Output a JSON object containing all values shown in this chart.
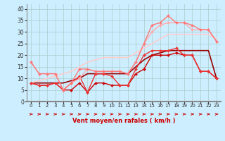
{
  "title": "",
  "xlabel": "Vent moyen/en rafales ( km/h )",
  "background_color": "#cceeff",
  "grid_color": "#aacccc",
  "xlim": [
    -0.5,
    23.5
  ],
  "ylim": [
    0,
    42
  ],
  "yticks": [
    0,
    5,
    10,
    15,
    20,
    25,
    30,
    35,
    40
  ],
  "xticks": [
    0,
    1,
    2,
    3,
    4,
    5,
    6,
    7,
    8,
    9,
    10,
    11,
    12,
    13,
    14,
    15,
    16,
    17,
    18,
    19,
    20,
    21,
    22,
    23
  ],
  "series": [
    {
      "x": [
        0,
        1,
        2,
        3,
        4,
        5,
        6,
        7,
        8,
        9,
        10,
        11,
        12,
        13,
        14,
        15,
        16,
        17,
        18,
        19,
        20,
        21,
        22,
        23
      ],
      "y": [
        8,
        7,
        7,
        8,
        5,
        5,
        8,
        4,
        8,
        8,
        7,
        7,
        7,
        12,
        14,
        20,
        20,
        20,
        21,
        20,
        20,
        13,
        13,
        10
      ],
      "color": "#cc0000",
      "lw": 1.0,
      "marker": "D",
      "ms": 2.0
    },
    {
      "x": [
        0,
        1,
        2,
        3,
        4,
        5,
        6,
        7,
        8,
        9,
        10,
        11,
        12,
        13,
        14,
        15,
        16,
        17,
        18,
        19,
        20,
        21,
        22,
        23
      ],
      "y": [
        8,
        7,
        7,
        8,
        5,
        8,
        11,
        4,
        12,
        12,
        11,
        7,
        7,
        14,
        20,
        22,
        22,
        22,
        23,
        20,
        20,
        13,
        13,
        10
      ],
      "color": "#ee3333",
      "lw": 1.0,
      "marker": "D",
      "ms": 2.0
    },
    {
      "x": [
        0,
        1,
        2,
        3,
        4,
        5,
        6,
        7,
        8,
        9,
        10,
        11,
        12,
        13,
        14,
        15,
        16,
        17,
        18,
        19,
        20,
        21,
        22,
        23
      ],
      "y": [
        8,
        8,
        8,
        8,
        8,
        9,
        10,
        12,
        12,
        12,
        12,
        12,
        12,
        15,
        18,
        20,
        21,
        22,
        22,
        22,
        22,
        22,
        22,
        10
      ],
      "color": "#990000",
      "lw": 1.2,
      "marker": null,
      "ms": 0
    },
    {
      "x": [
        0,
        1,
        2,
        3,
        4,
        5,
        6,
        7,
        8,
        9,
        10,
        11,
        12,
        13,
        14,
        15,
        16,
        17,
        18,
        19,
        20,
        21,
        22,
        23
      ],
      "y": [
        17,
        12,
        12,
        12,
        5,
        8,
        10,
        14,
        13,
        13,
        13,
        13,
        12,
        17,
        25,
        30,
        33,
        34,
        34,
        34,
        31,
        31,
        31,
        26
      ],
      "color": "#ffaaaa",
      "lw": 1.0,
      "marker": "D",
      "ms": 2.0
    },
    {
      "x": [
        0,
        1,
        2,
        3,
        4,
        5,
        6,
        7,
        8,
        9,
        10,
        11,
        12,
        13,
        14,
        15,
        16,
        17,
        18,
        19,
        20,
        21,
        22,
        23
      ],
      "y": [
        17,
        12,
        12,
        12,
        5,
        8,
        14,
        14,
        13,
        13,
        13,
        13,
        12,
        17,
        25,
        33,
        34,
        37,
        34,
        34,
        33,
        31,
        31,
        26
      ],
      "color": "#ff7777",
      "lw": 1.0,
      "marker": "D",
      "ms": 2.0
    },
    {
      "x": [
        0,
        1,
        2,
        3,
        4,
        5,
        6,
        7,
        8,
        9,
        10,
        11,
        12,
        13,
        14,
        15,
        16,
        17,
        18,
        19,
        20,
        21,
        22,
        23
      ],
      "y": [
        8,
        9,
        10,
        11,
        12,
        13,
        15,
        17,
        18,
        19,
        19,
        19,
        19,
        21,
        23,
        25,
        27,
        29,
        29,
        29,
        29,
        29,
        29,
        27
      ],
      "color": "#ffcccc",
      "lw": 1.2,
      "marker": null,
      "ms": 0
    }
  ],
  "arrow_color": "#cc0000"
}
